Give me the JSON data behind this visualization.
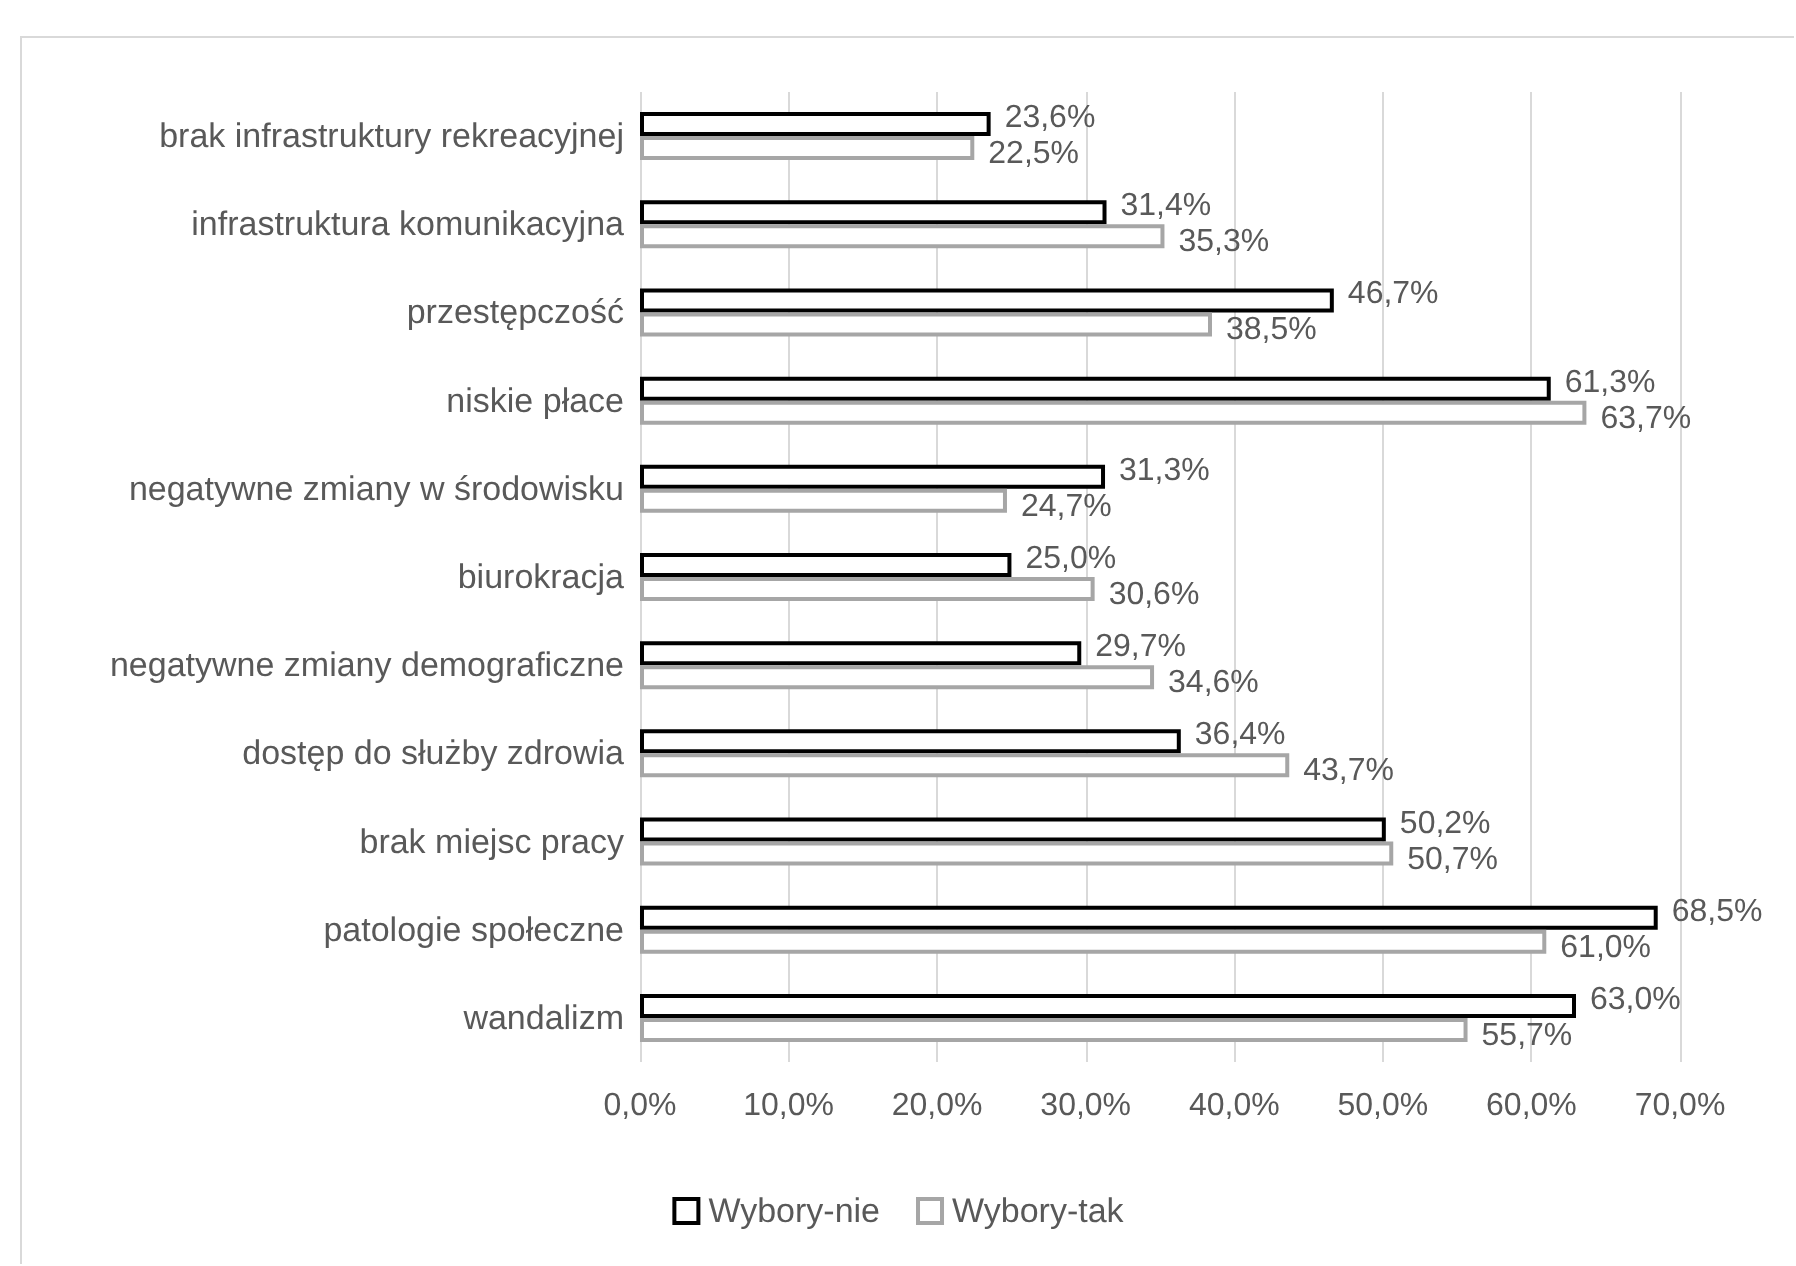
{
  "chart_data": {
    "type": "bar",
    "orientation": "horizontal",
    "categories": [
      "brak infrastruktury rekreacyjnej",
      "infrastruktura komunikacyjna",
      "przestępczość",
      "niskie płace",
      "negatywne zmiany w środowisku",
      "biurokracja",
      "negatywne zmiany demograficzne",
      "dostęp do służby zdrowia",
      "brak miejsc pracy",
      "patologie społeczne",
      "wandalizm"
    ],
    "series": [
      {
        "name": "Wybory-nie",
        "color": "#000000",
        "values": [
          23.6,
          31.4,
          46.7,
          61.3,
          31.3,
          25.0,
          29.7,
          36.4,
          50.2,
          68.5,
          63.0
        ],
        "value_labels": [
          "23,6%",
          "31,4%",
          "46,7%",
          "61,3%",
          "31,3%",
          "25,0%",
          "29,7%",
          "36,4%",
          "50,2%",
          "68,5%",
          "63,0%"
        ]
      },
      {
        "name": "Wybory-tak",
        "color": "#a6a6a6",
        "values": [
          22.5,
          35.3,
          38.5,
          63.7,
          24.7,
          30.6,
          34.6,
          43.7,
          50.7,
          61.0,
          55.7
        ],
        "value_labels": [
          "22,5%",
          "35,3%",
          "38,5%",
          "63,7%",
          "24,7%",
          "30,6%",
          "34,6%",
          "43,7%",
          "50,7%",
          "61,0%",
          "55,7%"
        ]
      }
    ],
    "xlim": [
      0,
      70
    ],
    "xticks": [
      {
        "value": 0,
        "label": "0,0%"
      },
      {
        "value": 10,
        "label": "10,0%"
      },
      {
        "value": 20,
        "label": "20,0%"
      },
      {
        "value": 30,
        "label": "30,0%"
      },
      {
        "value": 40,
        "label": "40,0%"
      },
      {
        "value": 50,
        "label": "50,0%"
      },
      {
        "value": 60,
        "label": "60,0%"
      },
      {
        "value": 70,
        "label": "70,0%"
      }
    ],
    "grid": "x",
    "legend": "bottom"
  }
}
